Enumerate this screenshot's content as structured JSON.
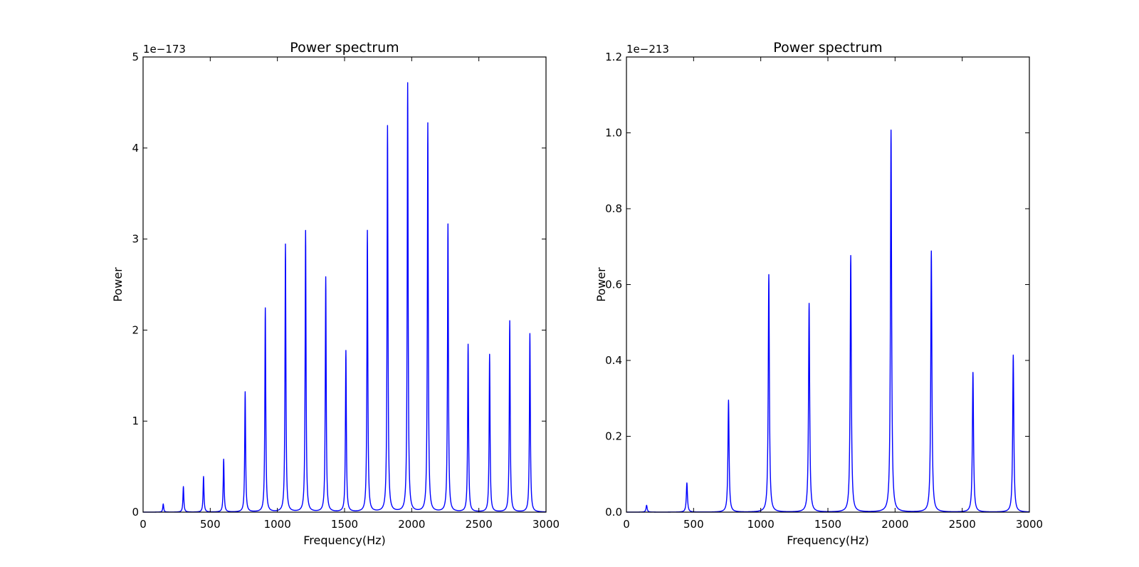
{
  "colors": {
    "line": "#0000ff",
    "axes": "#000000",
    "background": "#ffffff"
  },
  "chart_data": [
    {
      "type": "line",
      "title": "Power spectrum",
      "xlabel": "Frequency(Hz)",
      "ylabel": "Power",
      "offset_text": "1e−173",
      "xlim": [
        0,
        3000
      ],
      "ylim": [
        0,
        5
      ],
      "xticks": [
        0,
        500,
        1000,
        1500,
        2000,
        2500,
        3000
      ],
      "xtick_labels": [
        "0",
        "500",
        "1000",
        "1500",
        "2000",
        "2500",
        "3000"
      ],
      "yticks": [
        0,
        1,
        2,
        3,
        4,
        5
      ],
      "ytick_labels": [
        "0",
        "1",
        "2",
        "3",
        "4",
        "5"
      ],
      "grid": false,
      "peak_width": 8,
      "peaks": [
        {
          "x": 150,
          "y": 0.09
        },
        {
          "x": 300,
          "y": 0.28
        },
        {
          "x": 450,
          "y": 0.39
        },
        {
          "x": 600,
          "y": 0.58
        },
        {
          "x": 760,
          "y": 1.32
        },
        {
          "x": 910,
          "y": 2.24
        },
        {
          "x": 1060,
          "y": 2.94
        },
        {
          "x": 1210,
          "y": 3.09
        },
        {
          "x": 1360,
          "y": 2.58
        },
        {
          "x": 1510,
          "y": 1.77
        },
        {
          "x": 1670,
          "y": 3.09
        },
        {
          "x": 1820,
          "y": 4.24
        },
        {
          "x": 1970,
          "y": 4.71
        },
        {
          "x": 2120,
          "y": 4.27
        },
        {
          "x": 2270,
          "y": 3.16
        },
        {
          "x": 2420,
          "y": 1.84
        },
        {
          "x": 2580,
          "y": 1.73
        },
        {
          "x": 2730,
          "y": 2.1
        },
        {
          "x": 2880,
          "y": 1.96
        }
      ]
    },
    {
      "type": "line",
      "title": "Power spectrum",
      "xlabel": "Frequency(Hz)",
      "ylabel": "Power",
      "offset_text": "1e−213",
      "xlim": [
        0,
        3000
      ],
      "ylim": [
        0,
        1.2
      ],
      "xticks": [
        0,
        500,
        1000,
        1500,
        2000,
        2500,
        3000
      ],
      "xtick_labels": [
        "0",
        "500",
        "1000",
        "1500",
        "2000",
        "2500",
        "3000"
      ],
      "yticks": [
        0,
        0.2,
        0.4,
        0.6,
        0.8,
        1.0,
        1.2
      ],
      "ytick_labels": [
        "0.0",
        "0.2",
        "0.4",
        "0.6",
        "0.8",
        "1.0",
        "1.2"
      ],
      "grid": false,
      "peak_width": 10,
      "peaks": [
        {
          "x": 150,
          "y": 0.018
        },
        {
          "x": 450,
          "y": 0.077
        },
        {
          "x": 760,
          "y": 0.295
        },
        {
          "x": 1060,
          "y": 0.626
        },
        {
          "x": 1360,
          "y": 0.55
        },
        {
          "x": 1670,
          "y": 0.676
        },
        {
          "x": 1970,
          "y": 1.007
        },
        {
          "x": 2270,
          "y": 0.688
        },
        {
          "x": 2580,
          "y": 0.368
        },
        {
          "x": 2880,
          "y": 0.414
        }
      ]
    }
  ]
}
